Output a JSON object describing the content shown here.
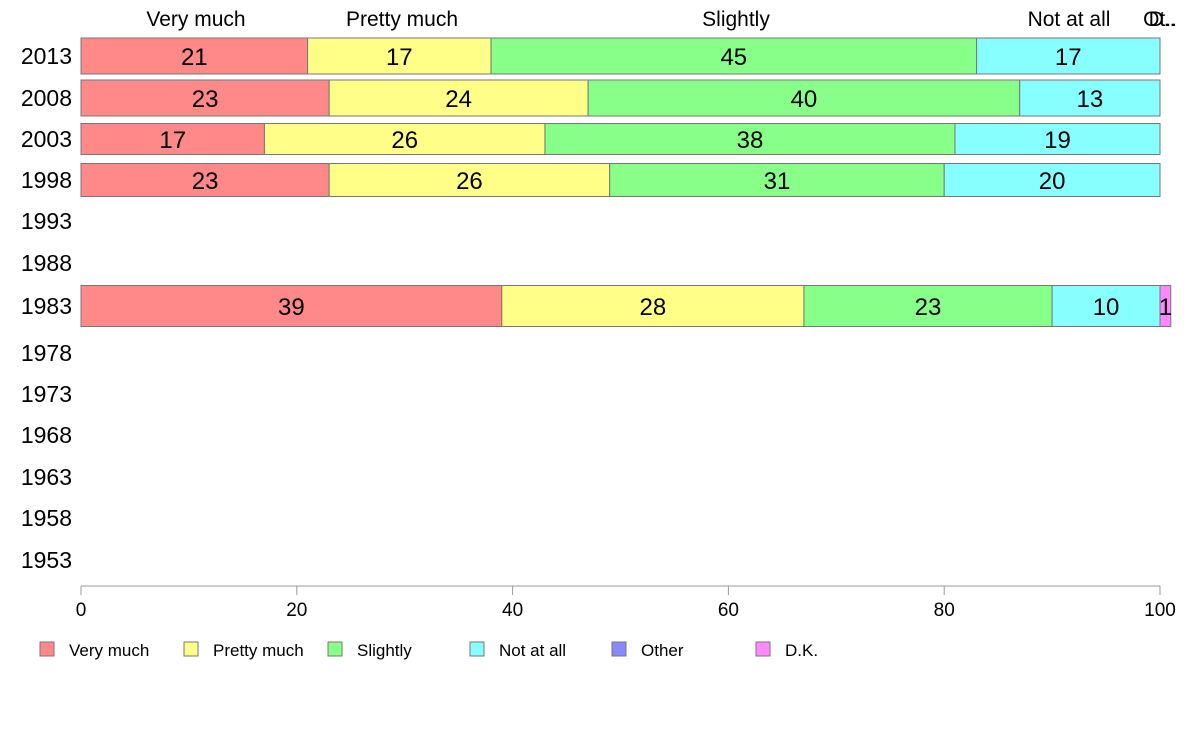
{
  "chart_data": {
    "type": "bar",
    "orientation": "horizontal",
    "stacked": true,
    "categories": [
      "2013",
      "2008",
      "2003",
      "1998",
      "1993",
      "1988",
      "1983",
      "1978",
      "1973",
      "1968",
      "1963",
      "1958",
      "1953"
    ],
    "series": [
      {
        "name": "Very much",
        "color": "#ff8888",
        "values": [
          21,
          23,
          17,
          23,
          null,
          null,
          39,
          null,
          null,
          null,
          null,
          null,
          null
        ]
      },
      {
        "name": "Pretty much",
        "color": "#ffff88",
        "values": [
          17,
          24,
          26,
          26,
          null,
          null,
          28,
          null,
          null,
          null,
          null,
          null,
          null
        ]
      },
      {
        "name": "Slightly",
        "color": "#88ff88",
        "values": [
          45,
          40,
          38,
          31,
          null,
          null,
          23,
          null,
          null,
          null,
          null,
          null,
          null
        ]
      },
      {
        "name": "Not at all",
        "color": "#88ffff",
        "values": [
          17,
          13,
          19,
          20,
          null,
          null,
          10,
          null,
          null,
          null,
          null,
          null,
          null
        ]
      },
      {
        "name": "Other",
        "color": "#8888ff",
        "values": [
          0,
          0,
          0,
          0,
          null,
          null,
          0,
          null,
          null,
          null,
          null,
          null,
          null
        ]
      },
      {
        "name": "D.K.",
        "color": "#ff88ff",
        "values": [
          0,
          0,
          0,
          0,
          null,
          null,
          1,
          null,
          null,
          null,
          null,
          null,
          null
        ]
      }
    ],
    "top_labels": [
      "Very much",
      "Pretty much",
      "Slightly",
      "Not at all",
      "Ot..",
      "D.."
    ],
    "xlim": [
      0,
      100
    ],
    "xticks": [
      0,
      20,
      40,
      60,
      80,
      100
    ],
    "grid": false,
    "legend_position": "bottom"
  }
}
